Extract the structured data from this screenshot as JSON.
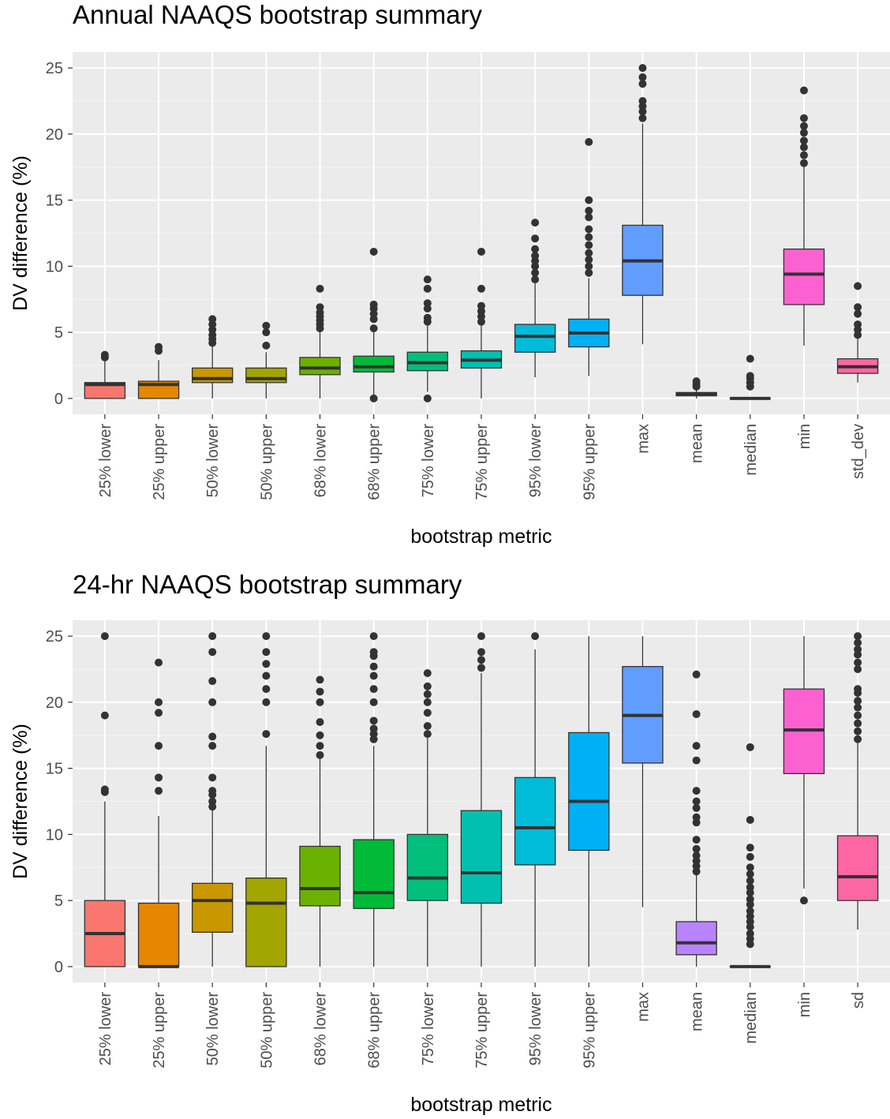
{
  "chart_data": [
    {
      "type": "boxplot",
      "title": "Annual NAAQS bootstrap summary",
      "xlabel": "bootstrap metric",
      "ylabel": "DV difference (%)",
      "ylim": [
        -1.2,
        26.2
      ],
      "yticks": [
        0,
        5,
        10,
        15,
        20,
        25
      ],
      "grid": true,
      "legend": "none",
      "categories": [
        "25% lower",
        "25% upper",
        "50% lower",
        "50% upper",
        "68% lower",
        "68% upper",
        "75% lower",
        "75% upper",
        "95% lower",
        "95% upper",
        "max",
        "mean",
        "median",
        "min",
        "std_dev"
      ],
      "colors": [
        "#F8766D",
        "#E58700",
        "#C99800",
        "#A3A500",
        "#6BB100",
        "#00BA38",
        "#00BF7D",
        "#00C0AF",
        "#00BCD8",
        "#00B0F6",
        "#619CFF",
        "#B983FF",
        "#E76BF3",
        "#FD61D1",
        "#FF67A4"
      ],
      "boxes": [
        {
          "q1": 0.0,
          "median": 1.05,
          "q3": 1.2,
          "lower": 0.0,
          "upper": 2.9,
          "outliers": [
            3.1,
            3.3
          ]
        },
        {
          "q1": 0.0,
          "median": 1.05,
          "q3": 1.3,
          "lower": 0.0,
          "upper": 2.9,
          "outliers": [
            3.6,
            3.9
          ]
        },
        {
          "q1": 1.2,
          "median": 1.5,
          "q3": 2.3,
          "lower": 0.0,
          "upper": 4.0,
          "outliers": [
            4.2,
            4.5,
            4.8,
            5.2,
            5.6,
            6.0
          ]
        },
        {
          "q1": 1.2,
          "median": 1.5,
          "q3": 2.3,
          "lower": 0.0,
          "upper": 3.5,
          "outliers": [
            4.0,
            5.0,
            5.5
          ]
        },
        {
          "q1": 1.8,
          "median": 2.3,
          "q3": 3.1,
          "lower": 0.0,
          "upper": 5.0,
          "outliers": [
            5.3,
            5.6,
            5.9,
            6.2,
            6.5,
            6.9,
            8.3
          ]
        },
        {
          "q1": 2.0,
          "median": 2.4,
          "q3": 3.2,
          "lower": 0.3,
          "upper": 5.0,
          "outliers": [
            0.0,
            5.3,
            6.0,
            6.4,
            6.8,
            7.1,
            11.1
          ]
        },
        {
          "q1": 2.1,
          "median": 2.7,
          "q3": 3.5,
          "lower": 0.5,
          "upper": 5.5,
          "outliers": [
            0.0,
            5.8,
            6.1,
            6.8,
            7.2,
            8.3,
            9.0
          ]
        },
        {
          "q1": 2.3,
          "median": 2.9,
          "q3": 3.6,
          "lower": 0.0,
          "upper": 5.5,
          "outliers": [
            5.8,
            6.2,
            6.6,
            7.0,
            8.3,
            11.1
          ]
        },
        {
          "q1": 3.5,
          "median": 4.7,
          "q3": 5.6,
          "lower": 1.6,
          "upper": 8.7,
          "outliers": [
            9.0,
            9.5,
            10.0,
            10.4,
            10.8,
            11.3,
            12.1,
            13.3
          ]
        },
        {
          "q1": 3.9,
          "median": 4.95,
          "q3": 6.0,
          "lower": 1.7,
          "upper": 9.1,
          "outliers": [
            9.5,
            10.0,
            10.5,
            11.0,
            11.6,
            12.2,
            12.8,
            13.7,
            14.2,
            15.0,
            19.4
          ]
        },
        {
          "q1": 7.8,
          "median": 10.4,
          "q3": 13.1,
          "lower": 4.1,
          "upper": 20.8,
          "outliers": [
            21.2,
            21.7,
            22.1,
            22.5,
            23.8,
            24.3,
            25.0
          ]
        },
        {
          "q1": 0.2,
          "median": 0.35,
          "q3": 0.45,
          "lower": 0.0,
          "upper": 0.7,
          "outliers": [
            0.9,
            1.1,
            1.3
          ]
        },
        {
          "q1": 0.0,
          "median": 0.0,
          "q3": 0.0,
          "lower": 0.0,
          "upper": 0.0,
          "outliers": [
            0.9,
            1.2,
            1.5,
            1.7,
            3.0
          ]
        },
        {
          "q1": 7.1,
          "median": 9.4,
          "q3": 11.3,
          "lower": 4.0,
          "upper": 17.5,
          "outliers": [
            17.8,
            18.4,
            19.0,
            19.5,
            20.1,
            20.6,
            21.2,
            23.3
          ]
        },
        {
          "q1": 1.9,
          "median": 2.4,
          "q3": 3.0,
          "lower": 1.2,
          "upper": 4.5,
          "outliers": [
            4.8,
            5.2,
            5.6,
            6.4,
            6.9,
            8.5
          ]
        }
      ]
    },
    {
      "type": "boxplot",
      "title": "24-hr NAAQS bootstrap summary",
      "xlabel": "bootstrap metric",
      "ylabel": "DV difference (%)",
      "ylim": [
        -1.2,
        26.2
      ],
      "yticks": [
        0,
        5,
        10,
        15,
        20,
        25
      ],
      "grid": true,
      "legend": "none",
      "categories": [
        "25% lower",
        "25% upper",
        "50% lower",
        "50% upper",
        "68% lower",
        "68% upper",
        "75% lower",
        "75% upper",
        "95% lower",
        "95% upper",
        "max",
        "mean",
        "median",
        "min",
        "sd"
      ],
      "colors": [
        "#F8766D",
        "#E58700",
        "#C99800",
        "#A3A500",
        "#6BB100",
        "#00BA38",
        "#00BF7D",
        "#00C0AF",
        "#00BCD8",
        "#00B0F6",
        "#619CFF",
        "#B983FF",
        "#E76BF3",
        "#FD61D1",
        "#FF67A4"
      ],
      "boxes": [
        {
          "q1": 0.0,
          "median": 2.5,
          "q3": 5.0,
          "lower": 0.0,
          "upper": 12.5,
          "outliers": [
            13.2,
            13.4,
            19.0,
            25.0
          ]
        },
        {
          "q1": 0.0,
          "median": 0.0,
          "q3": 4.8,
          "lower": 0.0,
          "upper": 11.4,
          "outliers": [
            13.3,
            14.3,
            16.7,
            19.2,
            20.0,
            23.0
          ]
        },
        {
          "q1": 2.6,
          "median": 5.0,
          "q3": 6.3,
          "lower": 0.0,
          "upper": 11.8,
          "outliers": [
            12.1,
            12.5,
            13.0,
            13.3,
            14.3,
            16.7,
            17.4,
            20.0,
            21.6,
            23.8,
            25.0
          ]
        },
        {
          "q1": 0.0,
          "median": 4.8,
          "q3": 6.7,
          "lower": 0.0,
          "upper": 16.7,
          "outliers": [
            17.6,
            20.0,
            21.0,
            22.0,
            22.9,
            23.8,
            25.0
          ]
        },
        {
          "q1": 4.6,
          "median": 5.9,
          "q3": 9.1,
          "lower": 0.0,
          "upper": 15.8,
          "outliers": [
            16.0,
            16.7,
            17.5,
            18.5,
            20.0,
            20.8,
            21.7
          ]
        },
        {
          "q1": 4.4,
          "median": 5.6,
          "q3": 9.6,
          "lower": 0.0,
          "upper": 16.7,
          "outliers": [
            17.2,
            17.6,
            18.0,
            18.6,
            20.0,
            21.0,
            22.0,
            22.7,
            23.5,
            23.8,
            25.0
          ]
        },
        {
          "q1": 5.0,
          "median": 6.7,
          "q3": 10.0,
          "lower": 0.0,
          "upper": 17.3,
          "outliers": [
            17.6,
            18.2,
            19.2,
            20.0,
            20.6,
            21.2,
            22.2
          ]
        },
        {
          "q1": 4.8,
          "median": 7.1,
          "q3": 11.8,
          "lower": 0.0,
          "upper": 22.2,
          "outliers": [
            22.6,
            23.2,
            23.8,
            25.0
          ]
        },
        {
          "q1": 7.7,
          "median": 10.5,
          "q3": 14.3,
          "lower": 0.0,
          "upper": 24.0,
          "outliers": [
            25.0
          ]
        },
        {
          "q1": 8.8,
          "median": 12.5,
          "q3": 17.7,
          "lower": 0.0,
          "upper": 25.0,
          "outliers": []
        },
        {
          "q1": 15.4,
          "median": 19.0,
          "q3": 22.7,
          "lower": 4.5,
          "upper": 25.0,
          "outliers": []
        },
        {
          "q1": 0.9,
          "median": 1.8,
          "q3": 3.4,
          "lower": 0.0,
          "upper": 7.0,
          "outliers": [
            7.2,
            7.6,
            8.0,
            8.4,
            8.9,
            9.6,
            10.9,
            11.3,
            12.0,
            12.5,
            13.3,
            15.6,
            16.7,
            19.1,
            22.1
          ]
        },
        {
          "q1": 0.0,
          "median": 0.0,
          "q3": 0.0,
          "lower": 0.0,
          "upper": 0.0,
          "outliers": [
            1.7,
            2.1,
            2.5,
            3.0,
            3.4,
            3.8,
            4.2,
            4.7,
            5.1,
            5.6,
            6.0,
            6.5,
            7.0,
            7.5,
            8.3,
            9.0,
            11.1,
            16.6
          ]
        },
        {
          "q1": 14.6,
          "median": 17.9,
          "q3": 21.0,
          "lower": 5.9,
          "upper": 25.0,
          "outliers": [
            5.0
          ]
        },
        {
          "q1": 5.0,
          "median": 6.8,
          "q3": 9.9,
          "lower": 2.8,
          "upper": 16.9,
          "outliers": [
            17.2,
            17.8,
            18.4,
            19.0,
            19.6,
            20.1,
            20.7,
            21.0,
            22.5,
            23.0,
            23.6,
            24.0,
            24.5,
            25.0
          ]
        }
      ]
    }
  ]
}
